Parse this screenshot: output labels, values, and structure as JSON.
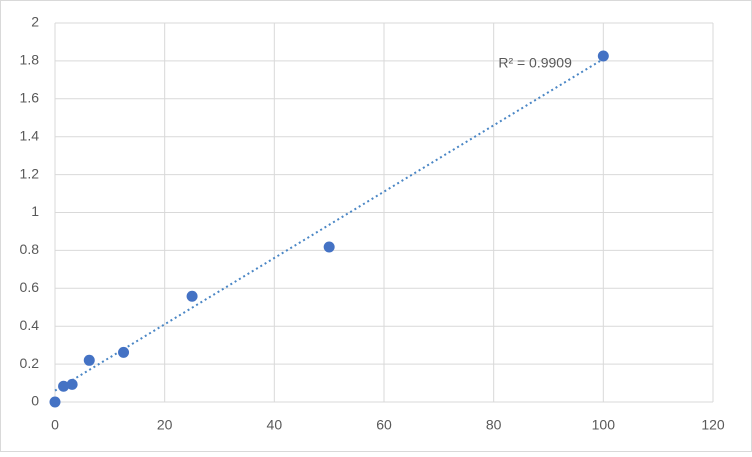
{
  "chart_data": {
    "type": "scatter",
    "x": [
      0,
      1.5625,
      3.125,
      6.25,
      12.5,
      25,
      50,
      100
    ],
    "series": [
      {
        "color": "#4472c4",
        "values": [
          0,
          0.083,
          0.093,
          0.22,
          0.262,
          0.558,
          0.818,
          1.826
        ]
      }
    ],
    "trendline": {
      "x": [
        0,
        100
      ],
      "y": [
        0.06,
        1.81
      ],
      "color": "#4a86c5"
    },
    "annotation": "R² = 0.9909",
    "xlim": [
      0,
      120
    ],
    "xticks": [
      0,
      20,
      40,
      60,
      80,
      100,
      120
    ],
    "ylim": [
      0,
      2
    ],
    "yticks": [
      0,
      0.2,
      0.4,
      0.6,
      0.8,
      1,
      1.2,
      1.4,
      1.6,
      1.8,
      2
    ],
    "grid": true
  }
}
